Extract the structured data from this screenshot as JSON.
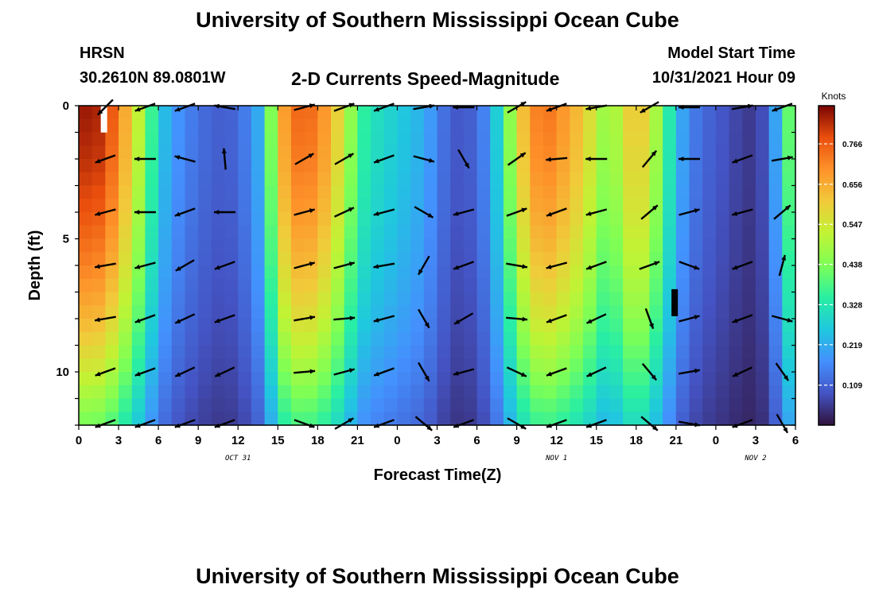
{
  "header": {
    "title": "University of Southern Mississippi Ocean Cube",
    "station": "HRSN",
    "coords": "30.2610N  89.0801W",
    "plot_title": "2-D Currents Speed-Magnitude",
    "model_start_label": "Model Start Time",
    "model_start_value": "10/31/2021 Hour 09"
  },
  "footer": {
    "title": "University of Southern Mississippi Ocean Cube"
  },
  "chart_data": {
    "type": "heatmap",
    "title": "2-D Currents Speed-Magnitude",
    "xlabel": "Forecast Time(Z)",
    "ylabel": "Depth (ft)",
    "x_tick_labels": [
      "0",
      "3",
      "6",
      "9",
      "12",
      "15",
      "18",
      "21",
      "0",
      "3",
      "6",
      "9",
      "12",
      "15",
      "18",
      "21",
      "0",
      "3",
      "6"
    ],
    "x_range_hours": [
      0,
      54
    ],
    "date_labels": [
      {
        "text": "OCT 31",
        "at_hour": 12
      },
      {
        "text": "NOV 1",
        "at_hour": 36
      },
      {
        "text": "NOV 2",
        "at_hour": 51
      }
    ],
    "y_tick_labels": [
      "0",
      "5",
      "10"
    ],
    "y_range_ft": [
      0,
      12
    ],
    "y_inverted": true,
    "colorbar": {
      "label": "Knots",
      "tick_labels": [
        "0.766",
        "0.656",
        "0.547",
        "0.438",
        "0.328",
        "0.219",
        "0.109"
      ],
      "range": [
        0,
        0.87
      ]
    },
    "times": [
      0,
      1,
      2,
      3,
      4,
      5,
      6,
      7,
      8,
      9,
      10,
      11,
      12,
      13,
      14,
      15,
      16,
      17,
      18,
      19,
      20,
      21,
      22,
      23,
      24,
      25,
      26,
      27,
      28,
      29,
      30,
      31,
      32,
      33,
      34,
      35,
      36,
      37,
      38,
      39,
      40,
      41,
      42,
      43,
      44,
      45,
      46,
      47,
      48,
      49,
      50,
      51,
      52,
      53,
      54
    ],
    "surface_speed_knots": [
      0.84,
      0.85,
      0.82,
      0.72,
      0.6,
      0.45,
      0.28,
      0.2,
      0.16,
      0.13,
      0.11,
      0.1,
      0.12,
      0.17,
      0.26,
      0.62,
      0.74,
      0.76,
      0.73,
      0.65,
      0.54,
      0.38,
      0.32,
      0.3,
      0.27,
      0.25,
      0.22,
      0.16,
      0.1,
      0.09,
      0.12,
      0.19,
      0.36,
      0.56,
      0.7,
      0.74,
      0.72,
      0.66,
      0.62,
      0.52,
      0.44,
      0.56,
      0.64,
      0.56,
      0.42,
      0.25,
      0.16,
      0.12,
      0.1,
      0.08,
      0.06,
      0.05,
      0.11,
      0.3,
      0.52
    ],
    "depth_profile_factor_ft": {
      "depths": [
        0,
        2,
        4,
        6,
        8,
        10,
        12
      ],
      "factors": [
        1.0,
        0.97,
        0.92,
        0.85,
        0.76,
        0.64,
        0.5
      ]
    },
    "vectors": {
      "note": "current direction arrows, angle in degrees (0 = east, counter-clockwise), values sampled at hours x depths",
      "hours": [
        2,
        5,
        8,
        11,
        17,
        20,
        23,
        26,
        29,
        33,
        36,
        39,
        43,
        46,
        50,
        53
      ],
      "depths": [
        0,
        2,
        4,
        6,
        8,
        10,
        12
      ],
      "angle_deg": [
        [
          225,
          200,
          200,
          170,
          15,
          20,
          200,
          10,
          180,
          30,
          200,
          190,
          210,
          180,
          10,
          200
        ],
        [
          200,
          180,
          165,
          95,
          30,
          30,
          200,
          345,
          300,
          35,
          185,
          180,
          50,
          180,
          200,
          10
        ],
        [
          195,
          180,
          200,
          180,
          15,
          25,
          195,
          330,
          195,
          20,
          200,
          195,
          40,
          15,
          195,
          40
        ],
        [
          190,
          195,
          210,
          200,
          15,
          15,
          190,
          240,
          200,
          350,
          195,
          200,
          20,
          340,
          200,
          75
        ],
        [
          190,
          200,
          205,
          200,
          10,
          5,
          195,
          300,
          210,
          355,
          200,
          205,
          290,
          15,
          200,
          345
        ],
        [
          200,
          200,
          205,
          205,
          5,
          15,
          200,
          300,
          195,
          335,
          200,
          205,
          310,
          10,
          205,
          305
        ],
        [
          200,
          200,
          200,
          200,
          340,
          30,
          200,
          320,
          200,
          330,
          200,
          200,
          320,
          350,
          200,
          300
        ]
      ]
    },
    "cell_annotations": [
      {
        "text": "",
        "hour": 1.9,
        "depth": 0.5,
        "color": "#ffffff"
      },
      {
        "text": "",
        "hour": 44.9,
        "depth": 7.4,
        "color": "#000000"
      }
    ]
  }
}
